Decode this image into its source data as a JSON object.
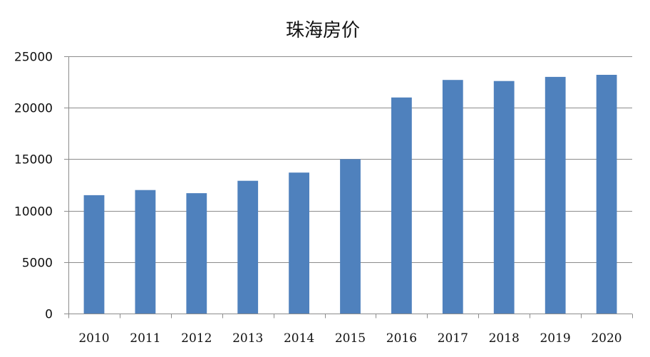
{
  "chart_data": {
    "type": "bar",
    "title": "珠海房价",
    "xlabel": "",
    "ylabel": "",
    "categories": [
      "2010",
      "2011",
      "2012",
      "2013",
      "2014",
      "2015",
      "2016",
      "2017",
      "2018",
      "2019",
      "2020"
    ],
    "series": [
      {
        "values": [
          11500,
          12000,
          11700,
          12900,
          13700,
          15000,
          21000,
          22700,
          22600,
          23000,
          23200
        ],
        "color": "#4f81bd"
      }
    ],
    "ylim": [
      0,
      25000
    ],
    "yticks": [
      0,
      5000,
      10000,
      15000,
      20000,
      25000
    ],
    "grid": true,
    "legend": "none"
  }
}
